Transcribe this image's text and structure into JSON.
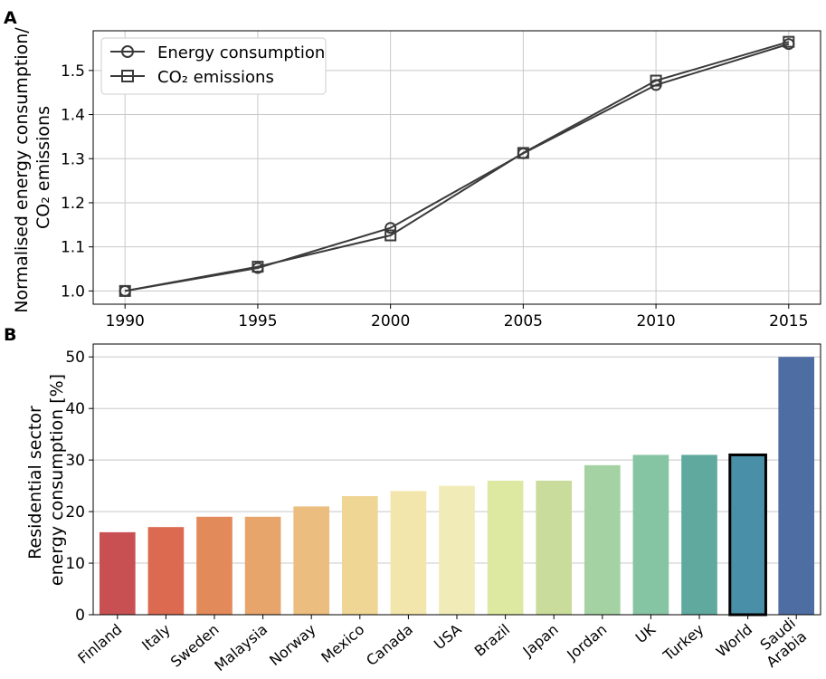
{
  "chart_data": [
    {
      "panel_label": "A",
      "type": "line",
      "title": "",
      "xlabel": "",
      "ylabel_lines": [
        "Normalised energy consumption/",
        "CO₂ emissions"
      ],
      "x": [
        1990,
        1995,
        2000,
        2005,
        2010,
        2015
      ],
      "xticks": [
        "1990",
        "1995",
        "2000",
        "2005",
        "2010",
        "2015"
      ],
      "xlim": [
        1988.8,
        2016.2
      ],
      "yticks": [
        "1.0",
        "1.1",
        "1.2",
        "1.3",
        "1.4",
        "1.5"
      ],
      "ylim": [
        0.97,
        1.59
      ],
      "grid": true,
      "legend_position": "top-left",
      "series": [
        {
          "name": "Energy consumption",
          "marker": "circle",
          "values": [
            1.0,
            1.052,
            1.143,
            1.312,
            1.467,
            1.56
          ]
        },
        {
          "name": "CO₂ emissions",
          "marker": "square",
          "values": [
            1.0,
            1.055,
            1.126,
            1.313,
            1.477,
            1.565
          ]
        }
      ],
      "colors": {
        "line": "#3a3a3a"
      }
    },
    {
      "panel_label": "B",
      "type": "bar",
      "title": "",
      "xlabel": "",
      "ylabel_lines": [
        "Residential sector",
        "energy consumption [%]"
      ],
      "categories": [
        "Finland",
        "Italy",
        "Sweden",
        "Malaysia",
        "Norway",
        "Mexico",
        "Canada",
        "USA",
        "Brazil",
        "Japan",
        "Jordan",
        "UK",
        "Turkey",
        "World",
        "Saudi Arabia"
      ],
      "values": [
        16,
        17,
        19,
        19,
        21,
        23,
        24,
        25,
        26,
        26,
        29,
        31,
        31,
        31,
        50
      ],
      "yticks": [
        "0",
        "10",
        "20",
        "30",
        "40",
        "50"
      ],
      "ylim": [
        0,
        52.5
      ],
      "grid": true,
      "highlighted_category": "World",
      "colors": [
        "#c95052",
        "#dc6a50",
        "#e38a5a",
        "#e7a56c",
        "#ebbd7f",
        "#efd695",
        "#f3e6ac",
        "#f1ecb7",
        "#dde8a1",
        "#c9dc9b",
        "#a5d2a3",
        "#86c5a3",
        "#5fa99f",
        "#4a8fa8",
        "#4e6da3"
      ]
    }
  ]
}
